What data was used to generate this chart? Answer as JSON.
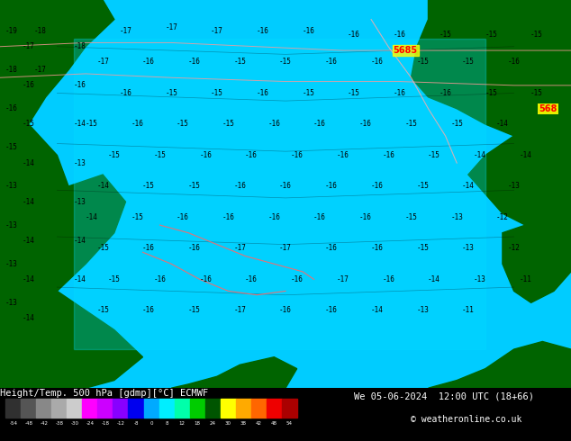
{
  "title_left": "Height/Temp. 500 hPa [gdmp][°C] ECMWF",
  "title_right": "We 05-06-2024 12:00 UTC (18+66)",
  "copyright": "© weatheronline.co.uk",
  "colorbar_values": [
    -54,
    -48,
    -42,
    -38,
    -30,
    -24,
    -18,
    -12,
    -8,
    0,
    8,
    12,
    18,
    24,
    30,
    38,
    42,
    48,
    54
  ],
  "colorbar_colors": [
    "#404040",
    "#606060",
    "#808080",
    "#a0a0a0",
    "#c0c0c0",
    "#ff00ff",
    "#cc00cc",
    "#9900ff",
    "#0000ff",
    "#00ccff",
    "#00ffff",
    "#00ff99",
    "#00cc00",
    "#006600",
    "#ffff00",
    "#ff9900",
    "#ff6600",
    "#ff0000",
    "#cc0000"
  ],
  "bg_color": "#00ccff",
  "map_bg": "#00bbee",
  "label_color_contour": "#000000",
  "label_color_warm": "#ff6666",
  "label_color_cold": "#0000ff",
  "bottom_bar_color": "#000000",
  "bottom_bar_bg": "#000000",
  "figsize": [
    6.34,
    4.9
  ],
  "dpi": 100
}
